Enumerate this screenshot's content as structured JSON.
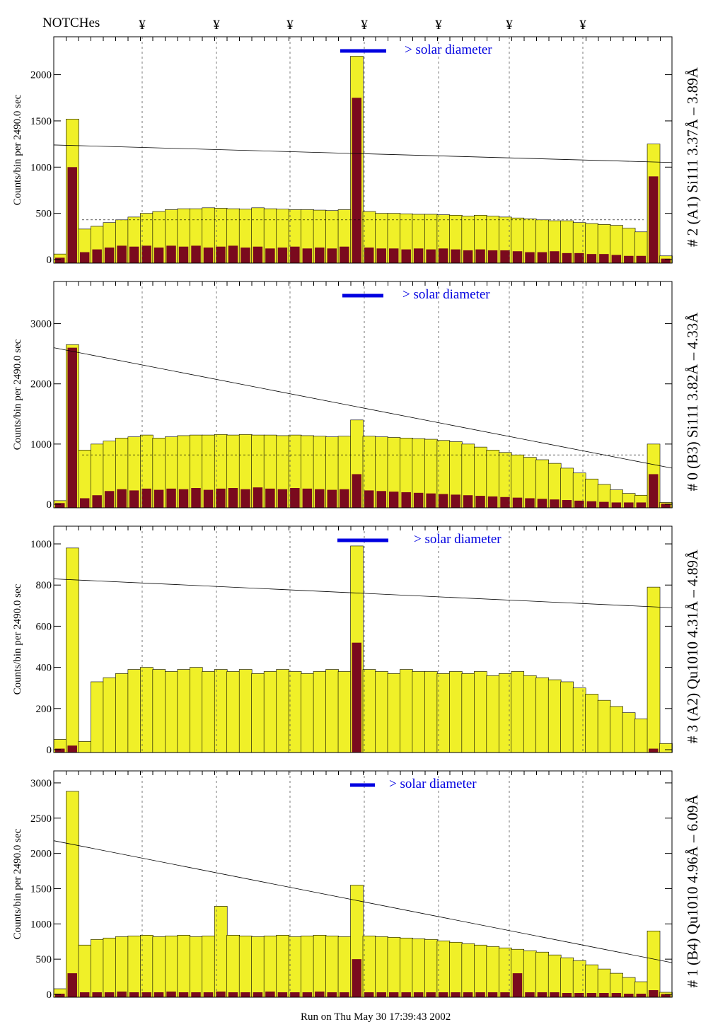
{
  "header": {
    "notches_label": "NOTCHes",
    "notch_symbol": "¥",
    "notch_count": 7
  },
  "footer": {
    "run_text": "Run on Thu May 30 17:39:43 2002"
  },
  "colors": {
    "total": "#f0f028",
    "secondary": "#7a0a1e",
    "solar": "#0000e0",
    "label_blue": "#0000cc"
  },
  "chart_data": [
    {
      "type": "bar",
      "title": "# 2 (A1) Si111  3.37Å – 3.89Å",
      "ylabel": "Counts/bin per   2490.0 sec",
      "solar_label": "> solar diameter",
      "ylim": [
        0,
        2410
      ],
      "yticks": [
        0,
        500,
        1000,
        1500,
        2000
      ],
      "line": [
        1240,
        1050
      ],
      "dashed_level": 430,
      "total": [
        60,
        1520,
        330,
        360,
        400,
        430,
        460,
        500,
        520,
        540,
        550,
        550,
        560,
        555,
        550,
        545,
        560,
        550,
        545,
        540,
        540,
        535,
        530,
        540,
        2200,
        520,
        500,
        500,
        495,
        490,
        490,
        485,
        480,
        470,
        480,
        470,
        460,
        450,
        440,
        430,
        420,
        420,
        400,
        390,
        380,
        370,
        340,
        300,
        1250,
        40
      ],
      "secondary": [
        20,
        1000,
        80,
        110,
        130,
        150,
        140,
        150,
        130,
        150,
        140,
        150,
        130,
        140,
        150,
        130,
        140,
        120,
        130,
        140,
        120,
        130,
        120,
        140,
        1750,
        130,
        120,
        120,
        110,
        120,
        110,
        120,
        110,
        100,
        110,
        100,
        100,
        90,
        80,
        80,
        90,
        70,
        70,
        60,
        60,
        50,
        40,
        40,
        900,
        10
      ]
    },
    {
      "type": "bar",
      "title": "# 0 (B3) Si111  3.82Å – 4.33Å",
      "ylabel": "Counts/bin per   2490.0 sec",
      "solar_label": "> solar diameter",
      "ylim": [
        0,
        3700
      ],
      "yticks": [
        0,
        1000,
        2000,
        3000
      ],
      "line": [
        2600,
        600
      ],
      "dashed_level": 820,
      "total": [
        60,
        2650,
        900,
        1000,
        1050,
        1100,
        1120,
        1150,
        1100,
        1120,
        1140,
        1150,
        1150,
        1160,
        1150,
        1160,
        1150,
        1150,
        1140,
        1150,
        1140,
        1130,
        1120,
        1130,
        1400,
        1130,
        1120,
        1110,
        1100,
        1090,
        1080,
        1060,
        1040,
        1000,
        950,
        900,
        860,
        820,
        780,
        740,
        680,
        600,
        520,
        420,
        330,
        240,
        180,
        150,
        1000,
        30
      ],
      "secondary": [
        20,
        2600,
        100,
        150,
        220,
        250,
        230,
        260,
        240,
        260,
        250,
        270,
        240,
        260,
        270,
        250,
        280,
        260,
        250,
        270,
        260,
        250,
        240,
        250,
        500,
        230,
        220,
        210,
        200,
        190,
        180,
        170,
        160,
        150,
        140,
        130,
        120,
        110,
        100,
        90,
        80,
        70,
        60,
        50,
        40,
        30,
        30,
        30,
        500,
        10
      ]
    },
    {
      "type": "bar",
      "title": "# 3 (A2) Qu1010  4.31Å – 4.89Å",
      "ylabel": "Counts/bin per   2490.0 sec",
      "solar_label": "> solar diameter",
      "ylim": [
        0,
        1086
      ],
      "yticks": [
        0,
        200,
        400,
        600,
        800,
        1000
      ],
      "line": [
        830,
        690
      ],
      "dashed_level": null,
      "total": [
        50,
        980,
        40,
        330,
        350,
        370,
        390,
        400,
        390,
        380,
        390,
        400,
        380,
        390,
        380,
        390,
        370,
        380,
        390,
        380,
        370,
        380,
        390,
        380,
        990,
        390,
        380,
        370,
        390,
        380,
        380,
        370,
        380,
        370,
        380,
        360,
        370,
        380,
        360,
        350,
        340,
        330,
        300,
        270,
        240,
        210,
        180,
        150,
        790,
        30
      ],
      "secondary": [
        5,
        20,
        0,
        0,
        0,
        0,
        0,
        0,
        0,
        0,
        0,
        0,
        0,
        0,
        0,
        0,
        0,
        0,
        0,
        0,
        0,
        0,
        0,
        0,
        520,
        0,
        0,
        0,
        0,
        0,
        0,
        0,
        0,
        0,
        0,
        0,
        0,
        0,
        0,
        0,
        0,
        0,
        0,
        0,
        0,
        0,
        0,
        0,
        5,
        0
      ]
    },
    {
      "type": "bar",
      "title": "# 1 (B4) Qu1010 4.96Å – 6.09Å",
      "ylabel": "Counts/bin per   2490.0 sec",
      "solar_label": "> solar diameter",
      "ylim": [
        0,
        3170
      ],
      "yticks": [
        0,
        500,
        1000,
        1500,
        2000,
        2500,
        3000
      ],
      "line": [
        2180,
        450
      ],
      "dashed_level": null,
      "total": [
        80,
        2880,
        700,
        780,
        800,
        820,
        830,
        840,
        820,
        830,
        840,
        820,
        830,
        1250,
        840,
        830,
        820,
        830,
        840,
        820,
        830,
        840,
        830,
        820,
        1550,
        830,
        820,
        810,
        800,
        790,
        780,
        760,
        740,
        720,
        700,
        680,
        660,
        640,
        620,
        600,
        560,
        520,
        480,
        420,
        360,
        300,
        240,
        180,
        900,
        30
      ],
      "secondary": [
        10,
        300,
        30,
        30,
        30,
        40,
        30,
        30,
        30,
        40,
        30,
        30,
        30,
        40,
        30,
        30,
        30,
        40,
        30,
        30,
        30,
        40,
        30,
        30,
        500,
        30,
        30,
        30,
        30,
        30,
        30,
        30,
        30,
        30,
        30,
        30,
        30,
        300,
        30,
        30,
        30,
        20,
        20,
        20,
        20,
        20,
        10,
        10,
        60,
        5
      ]
    }
  ]
}
